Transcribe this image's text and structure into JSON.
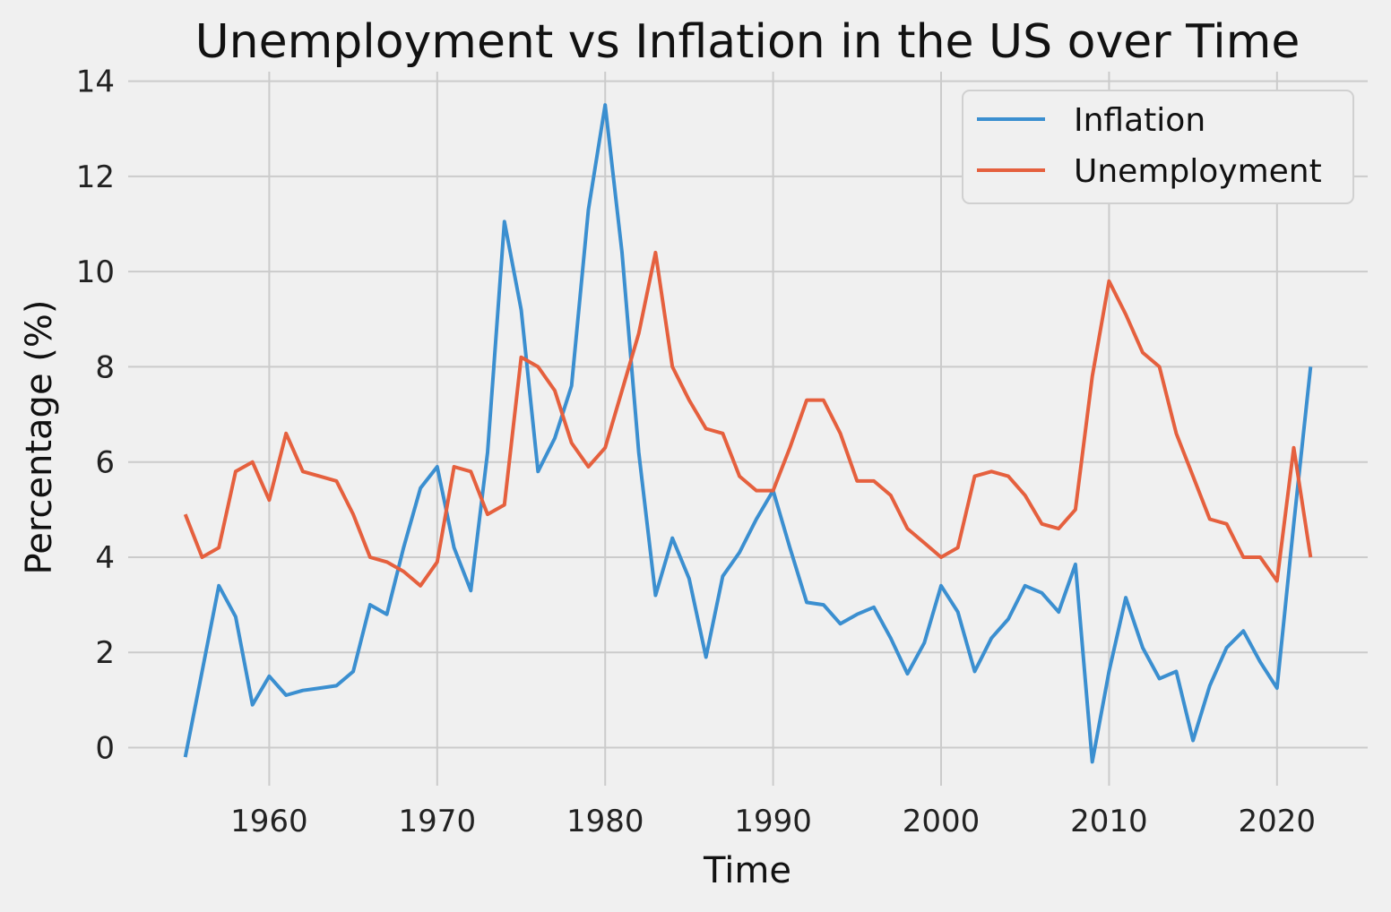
{
  "chart_data": {
    "type": "line",
    "title": "Unemployment vs Inflation in the US over Time",
    "xlabel": "Time",
    "ylabel": "Percentage (%)",
    "xlim": [
      1951.6,
      2025.4
    ],
    "ylim": [
      -0.8,
      14.2
    ],
    "xticks": [
      1960,
      1970,
      1980,
      1990,
      2000,
      2010,
      2020
    ],
    "yticks": [
      0,
      2,
      4,
      6,
      8,
      10,
      12,
      14
    ],
    "grid": true,
    "legend": "top-right",
    "x": [
      1955,
      1956,
      1957,
      1958,
      1959,
      1960,
      1961,
      1962,
      1963,
      1964,
      1965,
      1966,
      1967,
      1968,
      1969,
      1970,
      1971,
      1972,
      1973,
      1974,
      1975,
      1976,
      1977,
      1978,
      1979,
      1980,
      1981,
      1982,
      1983,
      1984,
      1985,
      1986,
      1987,
      1988,
      1989,
      1990,
      1991,
      1992,
      1993,
      1994,
      1995,
      1996,
      1997,
      1998,
      1999,
      2000,
      2001,
      2002,
      2003,
      2004,
      2005,
      2006,
      2007,
      2008,
      2009,
      2010,
      2011,
      2012,
      2013,
      2014,
      2015,
      2016,
      2017,
      2018,
      2019,
      2020,
      2021,
      2022
    ],
    "series": [
      {
        "name": "Inflation",
        "color": "#3b8fd0",
        "values": [
          -0.2,
          1.6,
          3.4,
          2.75,
          0.9,
          1.5,
          1.1,
          1.2,
          1.25,
          1.3,
          1.6,
          3.0,
          2.8,
          4.2,
          5.45,
          5.9,
          4.2,
          3.3,
          6.2,
          11.05,
          9.2,
          5.8,
          6.5,
          7.6,
          11.3,
          13.5,
          10.4,
          6.2,
          3.2,
          4.4,
          3.55,
          1.9,
          3.6,
          4.1,
          4.8,
          5.4,
          4.2,
          3.05,
          3.0,
          2.6,
          2.8,
          2.95,
          2.3,
          1.55,
          2.2,
          3.4,
          2.85,
          1.6,
          2.3,
          2.7,
          3.4,
          3.25,
          2.85,
          3.85,
          -0.3,
          1.6,
          3.15,
          2.1,
          1.45,
          1.6,
          0.15,
          1.3,
          2.1,
          2.45,
          1.8,
          1.25,
          4.7,
          8.0
        ]
      },
      {
        "name": "Unemployment",
        "color": "#e5603e",
        "values": [
          4.9,
          4.0,
          4.2,
          5.8,
          6.0,
          5.2,
          6.6,
          5.8,
          5.7,
          5.6,
          4.9,
          4.0,
          3.9,
          3.7,
          3.4,
          3.9,
          5.9,
          5.8,
          4.9,
          5.1,
          8.2,
          8.0,
          7.5,
          6.4,
          5.9,
          6.3,
          7.5,
          8.7,
          10.4,
          8.0,
          7.3,
          6.7,
          6.6,
          5.7,
          5.4,
          5.4,
          6.3,
          7.3,
          7.3,
          6.6,
          5.6,
          5.6,
          5.3,
          4.6,
          4.3,
          4.0,
          4.2,
          5.7,
          5.8,
          5.7,
          5.3,
          4.7,
          4.6,
          5.0,
          7.8,
          9.8,
          9.1,
          8.3,
          8.0,
          6.6,
          5.7,
          4.8,
          4.7,
          4.0,
          4.0,
          3.5,
          6.3,
          4.0
        ]
      }
    ]
  }
}
